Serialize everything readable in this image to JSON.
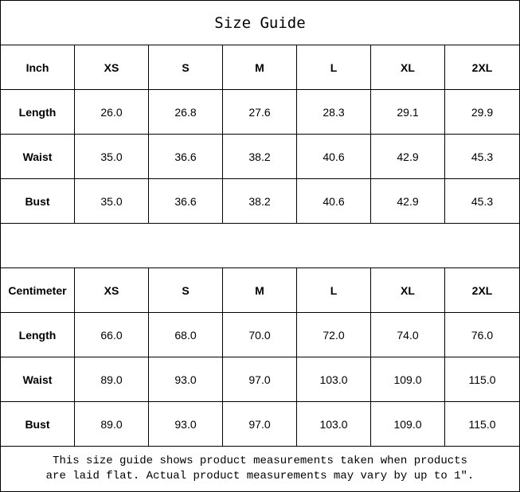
{
  "title": "Size Guide",
  "sizes": [
    "XS",
    "S",
    "M",
    "L",
    "XL",
    "2XL"
  ],
  "sections": [
    {
      "unit": "Inch",
      "rows": [
        {
          "label": "Length",
          "values": [
            "26.0",
            "26.8",
            "27.6",
            "28.3",
            "29.1",
            "29.9"
          ]
        },
        {
          "label": "Waist",
          "values": [
            "35.0",
            "36.6",
            "38.2",
            "40.6",
            "42.9",
            "45.3"
          ]
        },
        {
          "label": "Bust",
          "values": [
            "35.0",
            "36.6",
            "38.2",
            "40.6",
            "42.9",
            "45.3"
          ]
        }
      ]
    },
    {
      "unit": "Centimeter",
      "rows": [
        {
          "label": "Length",
          "values": [
            "66.0",
            "68.0",
            "70.0",
            "72.0",
            "74.0",
            "76.0"
          ]
        },
        {
          "label": "Waist",
          "values": [
            "89.0",
            "93.0",
            "97.0",
            "103.0",
            "109.0",
            "115.0"
          ]
        },
        {
          "label": "Bust",
          "values": [
            "89.0",
            "93.0",
            "97.0",
            "103.0",
            "109.0",
            "115.0"
          ]
        }
      ]
    }
  ],
  "note": {
    "line1": "This size guide shows product measurements taken when products",
    "line2": "are laid flat. Actual product measurements may vary by up to 1″."
  }
}
